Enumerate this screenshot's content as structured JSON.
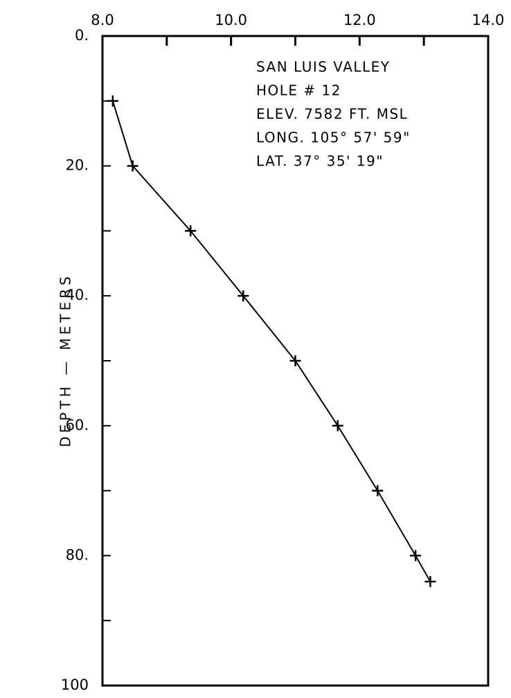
{
  "chart_data": {
    "type": "line",
    "ylabel": "DEPTH — METERS",
    "annotations": [
      "SAN LUIS VALLEY",
      "HOLE # 12",
      "ELEV. 7582 FT. MSL",
      "LONG. 105° 57' 59\"",
      "LAT.     37° 35' 19\""
    ],
    "x": [
      8.16,
      8.47,
      9.37,
      10.19,
      11.0,
      11.66,
      12.28,
      12.87,
      13.1
    ],
    "values": [
      10,
      20,
      30,
      40,
      50,
      60,
      70,
      80,
      84
    ],
    "color": "#000000",
    "xlim": [
      8,
      14
    ],
    "xticks": [
      {
        "value": 8,
        "label": "8.0"
      },
      {
        "value": 10,
        "label": "10.0"
      },
      {
        "value": 12,
        "label": "12.0"
      },
      {
        "value": 14,
        "label": "14.0"
      }
    ],
    "x_minor_ticks": [
      9,
      11,
      13
    ],
    "ylim": [
      0,
      100
    ],
    "yticks": [
      {
        "value": 0,
        "label": "0."
      },
      {
        "value": 20,
        "label": "20."
      },
      {
        "value": 40,
        "label": "40."
      },
      {
        "value": 60,
        "label": "60."
      },
      {
        "value": 80,
        "label": "80."
      },
      100
    ],
    "y_minor_ticks": [
      10,
      30,
      50,
      70,
      90
    ],
    "y_inverted": true,
    "grid": false
  }
}
